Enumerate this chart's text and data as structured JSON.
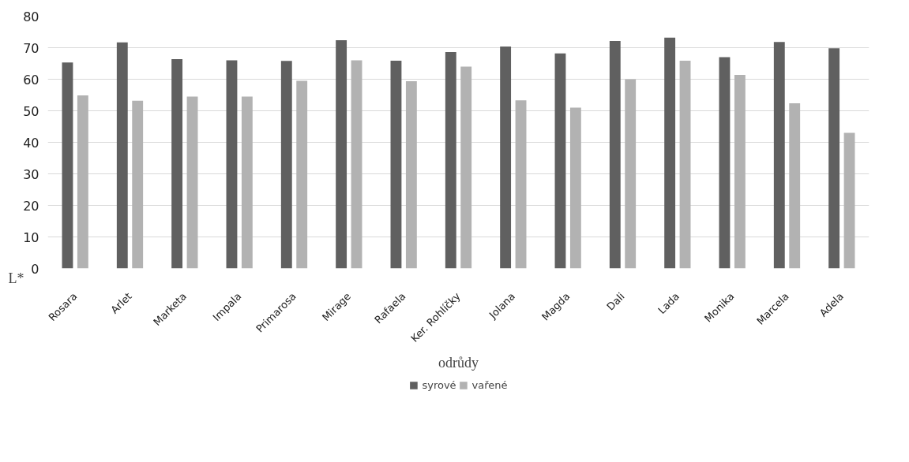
{
  "chart_data": {
    "type": "bar",
    "xlabel": "odrůdy",
    "ylabel": "L*",
    "categories": [
      "Rosara",
      "Arlet",
      "Marketa",
      "Impala",
      "Primarosa",
      "Mirage",
      "Rafaela",
      "Ker. Rohlíčky",
      "Jolana",
      "Magda",
      "Dali",
      "Lada",
      "Monika",
      "Marcela",
      "Adela"
    ],
    "series": [
      {
        "name": "syrové",
        "color": "#606060",
        "values": [
          65.3,
          71.7,
          66.4,
          66.0,
          65.8,
          72.4,
          65.9,
          68.6,
          70.4,
          68.2,
          72.1,
          73.2,
          67.0,
          71.8,
          69.8
        ]
      },
      {
        "name": "vařené",
        "color": "#b2b2b2",
        "values": [
          54.9,
          53.2,
          54.5,
          54.5,
          59.5,
          66.0,
          59.4,
          64.0,
          53.3,
          51.0,
          60.0,
          65.9,
          61.4,
          52.4,
          43.0
        ]
      }
    ],
    "ylim": [
      0,
      80
    ],
    "yticks": [
      0,
      10,
      20,
      30,
      40,
      50,
      60,
      70,
      80
    ],
    "grid": "y",
    "legend": "bottom"
  }
}
